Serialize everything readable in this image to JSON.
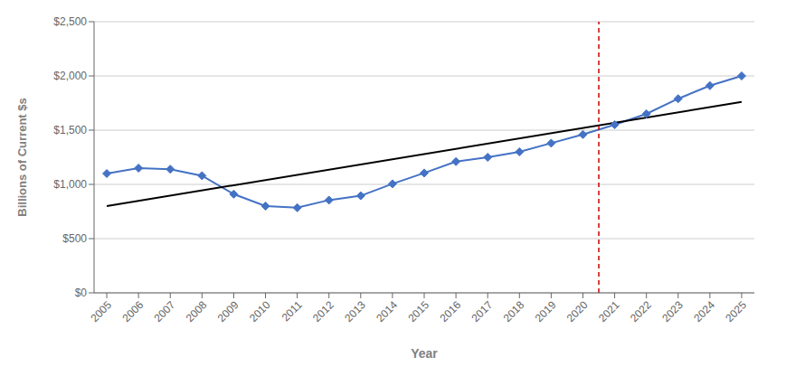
{
  "chart_data": {
    "type": "line",
    "xlabel": "Year",
    "ylabel": "Billions of Current $s",
    "series": [
      {
        "x": [
          2005,
          2006,
          2007,
          2008,
          2009,
          2010,
          2011,
          2012,
          2013,
          2014,
          2015,
          2016,
          2017,
          2018,
          2019,
          2020,
          2021,
          2022,
          2023,
          2024,
          2025
        ],
        "values": [
          1100,
          1150,
          1140,
          1080,
          910,
          800,
          785,
          855,
          895,
          1005,
          1105,
          1210,
          1250,
          1300,
          1380,
          1460,
          1550,
          1650,
          1790,
          1910,
          2000
        ],
        "color": "#4472C4",
        "marker": "diamond",
        "line_style": "solid"
      },
      {
        "x": [
          2005,
          2025
        ],
        "values": [
          800,
          1760
        ],
        "color": "#000000",
        "line_style": "solid"
      }
    ],
    "vlines": [
      {
        "x": 2020.5,
        "color": "#CC0000",
        "line_style": "dashed"
      }
    ],
    "xlim": [
      2004.6,
      2025.4
    ],
    "xticks": [
      2005,
      2006,
      2007,
      2008,
      2009,
      2010,
      2011,
      2012,
      2013,
      2014,
      2015,
      2016,
      2017,
      2018,
      2019,
      2020,
      2021,
      2022,
      2023,
      2024,
      2025
    ],
    "ylim": [
      0,
      2500
    ],
    "yticks": [
      {
        "value": 0,
        "label": "$0"
      },
      {
        "value": 500,
        "label": "$500"
      },
      {
        "value": 1000,
        "label": "$1,000"
      },
      {
        "value": 1500,
        "label": "$1,500"
      },
      {
        "value": 2000,
        "label": "$2,000"
      },
      {
        "value": 2500,
        "label": "$2,500"
      }
    ],
    "grid": "y"
  }
}
